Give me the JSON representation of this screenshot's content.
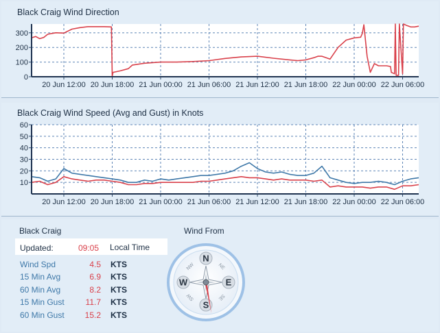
{
  "chart_data": [
    {
      "type": "line",
      "title": "Black Craig Wind Direction",
      "ylim": [
        0,
        360
      ],
      "yticks": [
        0,
        100,
        200,
        300
      ],
      "xticks": [
        "20 Jun 12:00",
        "20 Jun 18:00",
        "21 Jun 00:00",
        "21 Jun 06:00",
        "21 Jun 12:00",
        "21 Jun 18:00",
        "22 Jun 00:00",
        "22 Jun 06:00"
      ],
      "xtick_hours": [
        4,
        10,
        16,
        22,
        28,
        34,
        40,
        46
      ],
      "xlim_hours": [
        0,
        48
      ],
      "grid": true,
      "series": [
        {
          "color": "#d9404a",
          "x": [
            0,
            0.5,
            1,
            1.5,
            2,
            3,
            4,
            5,
            6,
            7,
            8,
            9,
            9.9,
            10.0,
            10.1,
            11,
            12,
            12.5,
            14,
            16,
            18,
            20,
            22,
            24,
            26,
            28,
            30,
            32,
            33,
            34,
            35,
            35.5,
            36,
            37,
            38,
            39,
            40,
            40.8,
            41.0,
            41.2,
            41.6,
            42,
            42.5,
            43,
            44,
            44.5,
            44.6,
            45.0,
            45.1,
            45.2,
            45.5,
            45.6,
            46.0,
            46.1,
            46.5,
            47,
            47.5,
            48
          ],
          "values": [
            265,
            275,
            260,
            268,
            290,
            300,
            298,
            325,
            335,
            342,
            342,
            342,
            340,
            5,
            30,
            40,
            55,
            80,
            92,
            100,
            100,
            104,
            110,
            125,
            135,
            140,
            126,
            115,
            110,
            115,
            130,
            140,
            140,
            120,
            200,
            250,
            265,
            270,
            295,
            355,
            140,
            30,
            90,
            75,
            75,
            70,
            30,
            20,
            360,
            10,
            10,
            360,
            20,
            360,
            350,
            340,
            340,
            345
          ]
        }
      ]
    },
    {
      "type": "line",
      "title": "Black Craig Wind Speed (Avg and Gust) in Knots",
      "ylim": [
        0,
        60
      ],
      "yticks": [
        10,
        20,
        30,
        40,
        50,
        60
      ],
      "xticks": [
        "20 Jun 12:00",
        "20 Jun 18:00",
        "21 Jun 00:00",
        "21 Jun 06:00",
        "21 Jun 12:00",
        "21 Jun 18:00",
        "22 Jun 00:00",
        "22 Jun 06:00"
      ],
      "xtick_hours": [
        4,
        10,
        16,
        22,
        28,
        34,
        40,
        46
      ],
      "xlim_hours": [
        0,
        48
      ],
      "grid": true,
      "series": [
        {
          "color": "#3e78a8",
          "x": [
            0,
            1,
            2,
            3,
            4,
            5,
            6,
            7,
            8,
            9,
            10,
            11,
            12,
            13,
            14,
            15,
            16,
            17,
            18,
            19,
            20,
            21,
            22,
            23,
            24,
            25,
            26,
            27,
            28,
            29,
            30,
            31,
            32,
            33,
            34,
            35,
            36,
            37,
            38,
            39,
            40,
            41,
            42,
            43,
            44,
            45,
            46,
            47,
            48
          ],
          "values": [
            15,
            14,
            11,
            13,
            22,
            18,
            17,
            16,
            15,
            14,
            13,
            12,
            10,
            10,
            12,
            11,
            13,
            12,
            13,
            14,
            15,
            16,
            16,
            17,
            18,
            20,
            24,
            27,
            22,
            19,
            18,
            19,
            17,
            16,
            16,
            18,
            24,
            14,
            12,
            10,
            9,
            10,
            10,
            11,
            10,
            8,
            11,
            13,
            14
          ]
        },
        {
          "color": "#d9404a",
          "x": [
            0,
            1,
            2,
            3,
            4,
            5,
            6,
            7,
            8,
            9,
            10,
            11,
            12,
            13,
            14,
            15,
            16,
            17,
            18,
            19,
            20,
            21,
            22,
            23,
            24,
            25,
            26,
            27,
            28,
            29,
            30,
            31,
            32,
            33,
            34,
            35,
            36,
            37,
            38,
            39,
            40,
            41,
            42,
            43,
            44,
            45,
            46,
            47,
            48
          ],
          "values": [
            10,
            11,
            8,
            10,
            15,
            13,
            12,
            11,
            12,
            12,
            11,
            10,
            8,
            8,
            9,
            9,
            10,
            10,
            10,
            10,
            10,
            11,
            11,
            12,
            13,
            14,
            15,
            14,
            14,
            13,
            12,
            13,
            12,
            12,
            12,
            11,
            12,
            6,
            7,
            6,
            6,
            6,
            5,
            6,
            6,
            4,
            7,
            7,
            8
          ]
        }
      ]
    }
  ],
  "station": {
    "name": "Black Craig",
    "updated_label": "Updated:",
    "updated_value": "09:05",
    "local_time_label": "Local Time"
  },
  "readings": [
    {
      "label": "Wind Spd",
      "value": "4.5",
      "unit": "KTS"
    },
    {
      "label": "15 Min Avg",
      "value": "6.9",
      "unit": "KTS"
    },
    {
      "label": "60 Min Avg",
      "value": "8.2",
      "unit": "KTS"
    },
    {
      "label": "15 Min Gust",
      "value": "11.7",
      "unit": "KTS"
    },
    {
      "label": "60 Min Gust",
      "value": "15.2",
      "unit": "KTS"
    }
  ],
  "compass": {
    "title": "Wind From",
    "direction_deg": 170,
    "labels": {
      "N": "N",
      "E": "E",
      "S": "S",
      "W": "W",
      "NE": "NE",
      "SE": "SE",
      "SW": "SW",
      "NW": "NW"
    }
  }
}
